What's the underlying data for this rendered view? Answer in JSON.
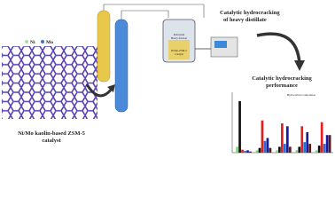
{
  "legend": {
    "ni": "Ni",
    "mo": "Mo"
  },
  "catalyst_caption": [
    "Ni/Mo kaolin-based ZSM-5",
    "catalyst"
  ],
  "process_title": [
    "Catalytic hydrocracking",
    "of heavy distillate"
  ],
  "performance_title": [
    "Catalytic hydrocracking",
    "performance"
  ],
  "reactor_labels": {
    "feed": [
      "Petroleum",
      "Heavy fraction"
    ],
    "catalyst": [
      "Ni/Mo-ZSM-5",
      "Catalyst"
    ]
  },
  "inset_chart": {
    "type": "bar",
    "title": "Hydrocarbon Composition",
    "ylim": [
      0,
      100
    ],
    "series": [
      {
        "color": "#7fd47f",
        "values": [
          10,
          4,
          4,
          4,
          4
        ]
      },
      {
        "color": "#111111",
        "values": [
          88,
          8,
          10,
          10,
          12
        ]
      },
      {
        "color": "#e02020",
        "values": [
          5,
          55,
          50,
          45,
          52
        ]
      },
      {
        "color": "#2a6fd6",
        "values": [
          3,
          20,
          15,
          18,
          15
        ]
      },
      {
        "color": "#1a1aa0",
        "values": [
          4,
          25,
          45,
          35,
          30
        ]
      },
      {
        "color": "#5a1a1a",
        "values": [
          2,
          8,
          10,
          15,
          30
        ]
      }
    ]
  }
}
